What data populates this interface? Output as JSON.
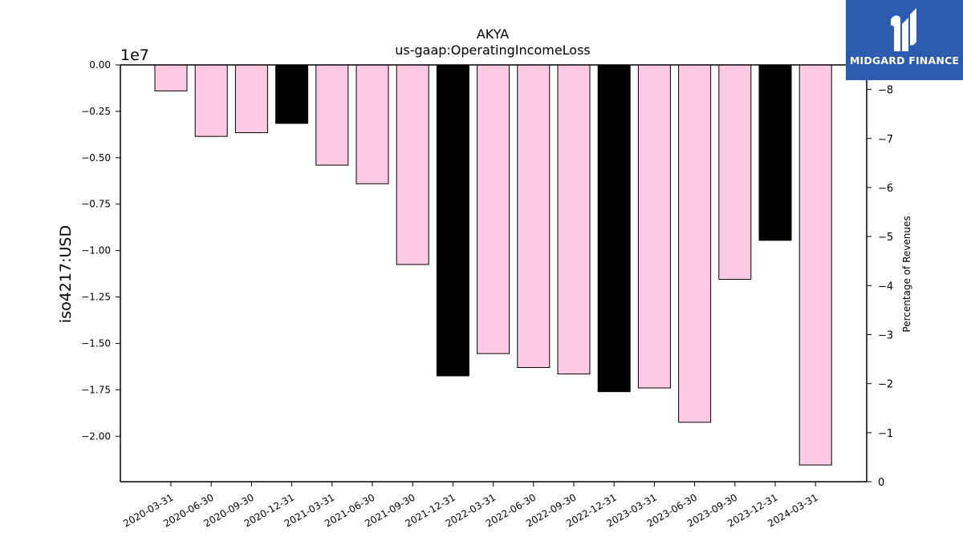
{
  "chart_data": {
    "type": "bar",
    "title": "AKYA",
    "subtitle": "us-gaap:OperatingIncomeLoss",
    "ylabel": "iso4217:USD",
    "y2label": "Percentage of Revenues",
    "offset_label": "1e7",
    "categories": [
      "2020-03-31",
      "2020-06-30",
      "2020-09-30",
      "2020-12-31",
      "2021-03-31",
      "2021-06-30",
      "2021-09-30",
      "2021-12-31",
      "2022-03-31",
      "2022-06-30",
      "2022-09-30",
      "2022-12-31",
      "2023-03-31",
      "2023-06-30",
      "2023-09-30",
      "2023-12-31",
      "2024-03-31"
    ],
    "values": [
      -1400000,
      -3850000,
      -3650000,
      -3150000,
      -5400000,
      -6400000,
      -10750000,
      -16750000,
      -15550000,
      -16300000,
      -16650000,
      -17600000,
      -17400000,
      -19250000,
      -11550000,
      -9450000,
      -21550000
    ],
    "bar_colors": [
      "#fccae3",
      "#fccae3",
      "#fccae3",
      "#000000",
      "#fccae3",
      "#fccae3",
      "#fccae3",
      "#000000",
      "#fccae3",
      "#fccae3",
      "#fccae3",
      "#000000",
      "#fccae3",
      "#fccae3",
      "#fccae3",
      "#000000",
      "#fccae3"
    ],
    "ylim": [
      -22450000,
      0
    ],
    "yticks": [
      0,
      -2500000,
      -5000000,
      -7500000,
      -10000000,
      -12500000,
      -15000000,
      -17500000,
      -20000000
    ],
    "ytick_labels": [
      "0.00",
      "−0.25",
      "−0.50",
      "−0.75",
      "−1.00",
      "−1.25",
      "−1.50",
      "−1.75",
      "−2.00"
    ],
    "y2lim": [
      0,
      8.5
    ],
    "y2ticks": [
      0,
      1,
      2,
      3,
      4,
      5,
      6,
      7,
      8
    ],
    "y2tick_labels": [
      "0",
      "−1",
      "−2",
      "−3",
      "−4",
      "−5",
      "−6",
      "−7",
      "−8"
    ],
    "grid": false
  },
  "logo": {
    "text": "MIDGARD FINANCE",
    "color": "#2d5bb0"
  }
}
